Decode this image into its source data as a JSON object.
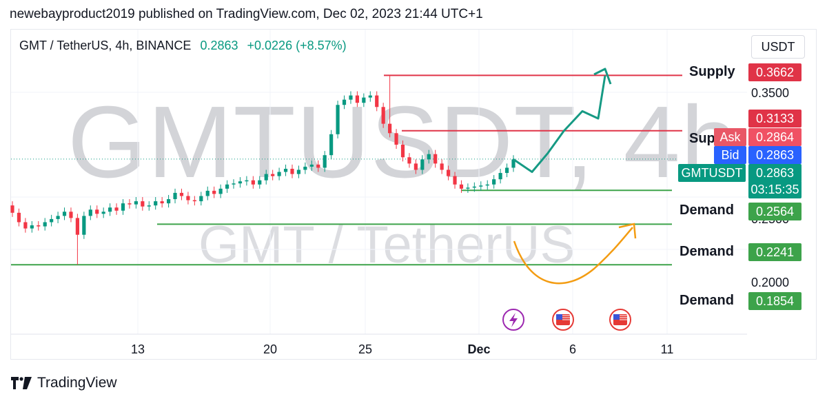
{
  "header": {
    "publish_line": "newebayproduct2019 published on TradingView.com, Dec 02, 2023 21:44 UTC+1"
  },
  "symbol_line": {
    "name": "GMT / TetherUS, 4h, BINANCE",
    "price": "0.2863",
    "change": "+0.0226 (+8.57%)"
  },
  "currency": "USDT",
  "watermark": {
    "big": "GMTUSDT, 4h",
    "small": "GMT / TetherUS"
  },
  "footer": {
    "brand": "TradingView"
  },
  "colors": {
    "up": "#089981",
    "down": "#f23645",
    "supply": "#e03347",
    "demand": "#3da34a",
    "bid": "#2962ff",
    "forecast_up": "#169a84",
    "forecast_alt": "#f39c12"
  },
  "chart_data": {
    "type": "candlestick",
    "title": "GMT / TetherUS, 4h, BINANCE",
    "x_ticks": [
      "13",
      "20",
      "25",
      "Dec",
      "6",
      "11"
    ],
    "y_ticks": [
      "0.3500",
      "0.2500",
      "0.2000"
    ],
    "ylim": [
      0.16,
      0.385
    ],
    "grid": true,
    "price_scale_side": "right",
    "last_price": 0.2863,
    "levels": [
      {
        "label": "Supply",
        "value": 0.3662,
        "kind": "supply",
        "tag": "0.3662"
      },
      {
        "label": "Supply",
        "value": 0.3133,
        "kind": "supply",
        "tag": "0.3133"
      },
      {
        "label": "Demand",
        "value": 0.2564,
        "kind": "demand",
        "tag": "0.2564"
      },
      {
        "label": "Demand",
        "value": 0.2241,
        "kind": "demand",
        "tag": "0.2241"
      },
      {
        "label": "Demand",
        "value": 0.1854,
        "kind": "demand",
        "tag": "0.1854"
      }
    ],
    "quotes": {
      "ask_label": "Ask",
      "ask": "0.2864",
      "bid_label": "Bid",
      "bid": "0.2863",
      "symbol": "GMTUSDT",
      "price": "0.2863",
      "countdown": "03:15:35"
    },
    "candle_path": [
      [
        0.242,
        0.235
      ],
      [
        0.235,
        0.226
      ],
      [
        0.226,
        0.22
      ],
      [
        0.22,
        0.223
      ],
      [
        0.223,
        0.222
      ],
      [
        0.222,
        0.226
      ],
      [
        0.226,
        0.229
      ],
      [
        0.229,
        0.232
      ],
      [
        0.232,
        0.236
      ],
      [
        0.236,
        0.23
      ],
      [
        0.23,
        0.214
      ],
      [
        0.214,
        0.232
      ],
      [
        0.232,
        0.238
      ],
      [
        0.238,
        0.234
      ],
      [
        0.234,
        0.236
      ],
      [
        0.236,
        0.24
      ],
      [
        0.24,
        0.237
      ],
      [
        0.237,
        0.244
      ],
      [
        0.244,
        0.243
      ],
      [
        0.243,
        0.246
      ],
      [
        0.246,
        0.241
      ],
      [
        0.241,
        0.242
      ],
      [
        0.242,
        0.246
      ],
      [
        0.246,
        0.244
      ],
      [
        0.244,
        0.248
      ],
      [
        0.248,
        0.254
      ],
      [
        0.254,
        0.251
      ],
      [
        0.251,
        0.247
      ],
      [
        0.247,
        0.246
      ],
      [
        0.246,
        0.251
      ],
      [
        0.251,
        0.256
      ],
      [
        0.256,
        0.253
      ],
      [
        0.253,
        0.258
      ],
      [
        0.258,
        0.262
      ],
      [
        0.262,
        0.263
      ],
      [
        0.263,
        0.265
      ],
      [
        0.265,
        0.266
      ],
      [
        0.266,
        0.262
      ],
      [
        0.262,
        0.266
      ],
      [
        0.266,
        0.272
      ],
      [
        0.272,
        0.27
      ],
      [
        0.27,
        0.274
      ],
      [
        0.274,
        0.277
      ],
      [
        0.277,
        0.272
      ],
      [
        0.272,
        0.276
      ],
      [
        0.276,
        0.279
      ],
      [
        0.279,
        0.281
      ],
      [
        0.281,
        0.278
      ],
      [
        0.278,
        0.29
      ],
      [
        0.29,
        0.31
      ],
      [
        0.31,
        0.338
      ],
      [
        0.338,
        0.343
      ],
      [
        0.343,
        0.347
      ],
      [
        0.347,
        0.34
      ],
      [
        0.34,
        0.345
      ],
      [
        0.345,
        0.347
      ],
      [
        0.347,
        0.336
      ],
      [
        0.336,
        0.32
      ],
      [
        0.32,
        0.311
      ],
      [
        0.311,
        0.3
      ],
      [
        0.3,
        0.288
      ],
      [
        0.288,
        0.282
      ],
      [
        0.282,
        0.276
      ],
      [
        0.276,
        0.286
      ],
      [
        0.286,
        0.291
      ],
      [
        0.291,
        0.282
      ],
      [
        0.282,
        0.276
      ],
      [
        0.276,
        0.27
      ],
      [
        0.27,
        0.262
      ],
      [
        0.262,
        0.258
      ],
      [
        0.258,
        0.259
      ],
      [
        0.259,
        0.26
      ],
      [
        0.26,
        0.261
      ],
      [
        0.261,
        0.262
      ],
      [
        0.262,
        0.267
      ],
      [
        0.267,
        0.273
      ],
      [
        0.273,
        0.278
      ],
      [
        0.278,
        0.286
      ]
    ],
    "spikes": [
      {
        "index": 10,
        "low": 0.1854
      },
      {
        "index": 58,
        "high": 0.3662
      }
    ],
    "forecast_main": [
      [
        0.286,
        "Dec 2"
      ],
      [
        0.274,
        "Dec 3"
      ],
      [
        0.292,
        "Dec 4"
      ],
      [
        0.313,
        "Dec 5"
      ],
      [
        0.332,
        "Dec 6"
      ],
      [
        0.325,
        "Dec 7"
      ],
      [
        0.366,
        "Dec 8"
      ]
    ],
    "events_row": [
      "lightning-icon",
      "us-flag-icon",
      "us-flag-icon"
    ]
  }
}
